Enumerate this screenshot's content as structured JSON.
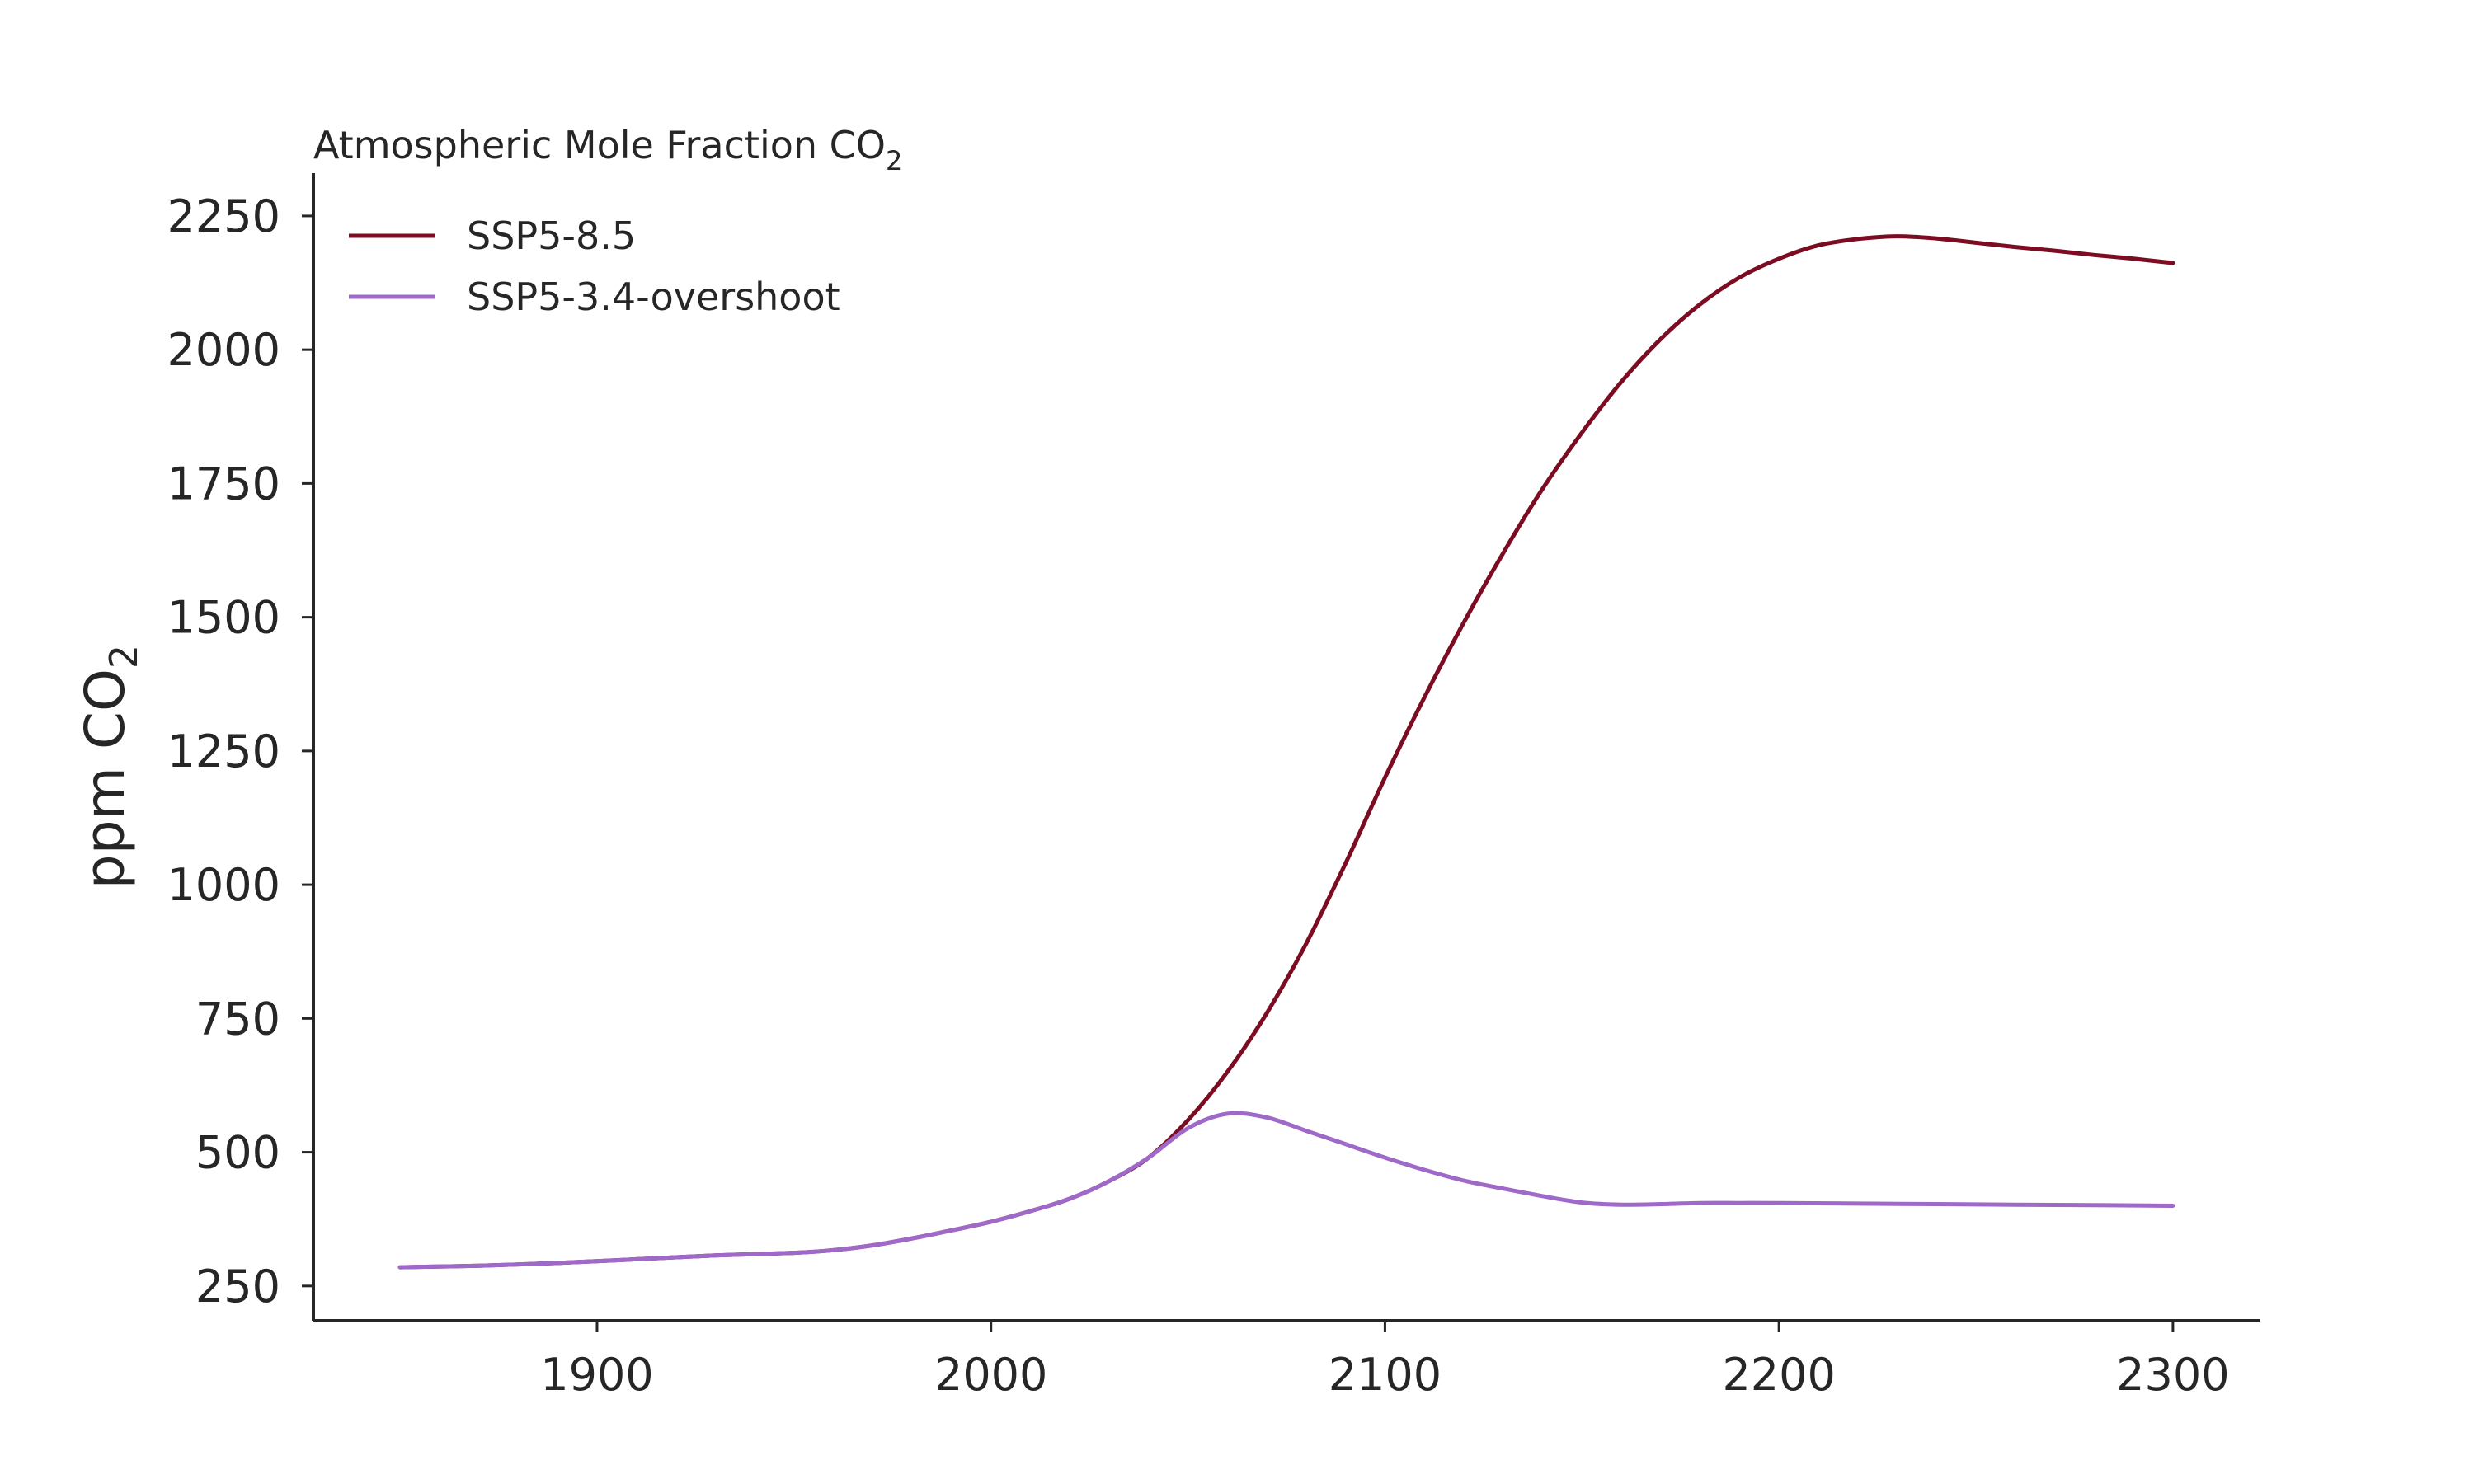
{
  "chart_data": {
    "type": "line",
    "title": "Atmospheric Mole Fraction CO",
    "title_subscript": "2",
    "ylabel": "ppm CO",
    "ylabel_subscript": "2",
    "xlabel": "",
    "xlim": [
      1828,
      2322
    ],
    "ylim": [
      185,
      2330
    ],
    "xticks": [
      1900,
      2000,
      2100,
      2200,
      2300
    ],
    "yticks": [
      250,
      500,
      750,
      1000,
      1250,
      1500,
      1750,
      2000,
      2250
    ],
    "grid": false,
    "legend_position": "top-left",
    "series": [
      {
        "name": "SSP5-8.5",
        "color": "#7b0c22",
        "x": [
          1850,
          1870,
          1890,
          1910,
          1930,
          1950,
          1960,
          1970,
          1980,
          1990,
          2000,
          2010,
          2020,
          2030,
          2040,
          2050,
          2060,
          2070,
          2080,
          2090,
          2100,
          2110,
          2120,
          2130,
          2140,
          2150,
          2160,
          2170,
          2180,
          2190,
          2200,
          2210,
          2220,
          2230,
          2240,
          2250,
          2260,
          2270,
          2280,
          2290,
          2300
        ],
        "values": [
          285,
          288,
          293,
          300,
          307,
          312,
          317,
          326,
          339,
          354,
          370,
          390,
          413,
          446,
          490,
          560,
          650,
          760,
          890,
          1040,
          1200,
          1350,
          1490,
          1620,
          1740,
          1845,
          1940,
          2020,
          2085,
          2135,
          2170,
          2195,
          2207,
          2212,
          2208,
          2200,
          2192,
          2185,
          2177,
          2170,
          2162
        ]
      },
      {
        "name": "SSP5-3.4-overshoot",
        "color": "#9e69c8",
        "x": [
          1850,
          1870,
          1890,
          1910,
          1930,
          1950,
          1960,
          1970,
          1980,
          1990,
          2000,
          2010,
          2020,
          2030,
          2040,
          2050,
          2060,
          2070,
          2080,
          2090,
          2100,
          2110,
          2120,
          2130,
          2140,
          2150,
          2160,
          2170,
          2180,
          2190,
          2200,
          2220,
          2240,
          2260,
          2280,
          2300
        ],
        "values": [
          285,
          288,
          293,
          300,
          307,
          312,
          317,
          326,
          339,
          354,
          370,
          390,
          413,
          446,
          490,
          545,
          572,
          565,
          540,
          515,
          490,
          467,
          447,
          432,
          418,
          406,
          402,
          403,
          405,
          405,
          405,
          404,
          403,
          402,
          401,
          400
        ]
      }
    ]
  }
}
